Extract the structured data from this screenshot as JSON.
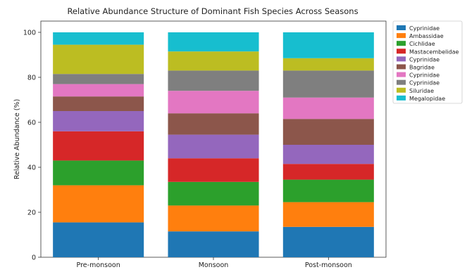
{
  "chart_data": {
    "type": "bar",
    "stacked": true,
    "title": "Relative Abundance Structure of Dominant Fish Species Across Seasons",
    "xlabel": "",
    "ylabel": "Relative Abundance (%)",
    "ylim": [
      0,
      105
    ],
    "yticks": [
      0,
      20,
      40,
      60,
      80,
      100
    ],
    "grid": false,
    "legend_position": "right",
    "categories": [
      "Pre-monsoon",
      "Monsoon",
      "Post-monsoon"
    ],
    "series": [
      {
        "name": "Cyprinidae",
        "color": "#1f77b4",
        "values": [
          15.5,
          11.5,
          13.5
        ]
      },
      {
        "name": "Ambassidae",
        "color": "#ff7f0e",
        "values": [
          16.5,
          11.5,
          11.0
        ]
      },
      {
        "name": "Cichlidae",
        "color": "#2ca02c",
        "values": [
          11.0,
          10.5,
          10.0
        ]
      },
      {
        "name": "Mastacembelidae",
        "color": "#d62728",
        "values": [
          13.0,
          10.5,
          7.0
        ]
      },
      {
        "name": "Cyprinidae",
        "color": "#9467bd",
        "values": [
          9.0,
          10.5,
          8.5
        ]
      },
      {
        "name": "Bagridae",
        "color": "#8c564b",
        "values": [
          6.5,
          9.5,
          11.5
        ]
      },
      {
        "name": "Cyprinidae",
        "color": "#e377c2",
        "values": [
          5.5,
          10.0,
          9.5
        ]
      },
      {
        "name": "Cyprinidae",
        "color": "#7f7f7f",
        "values": [
          4.5,
          9.0,
          12.0
        ]
      },
      {
        "name": "Siluridae",
        "color": "#bcbd22",
        "values": [
          13.0,
          8.5,
          5.5
        ]
      },
      {
        "name": "Megalopidae",
        "color": "#17becf",
        "values": [
          5.5,
          8.5,
          11.5
        ]
      }
    ]
  }
}
